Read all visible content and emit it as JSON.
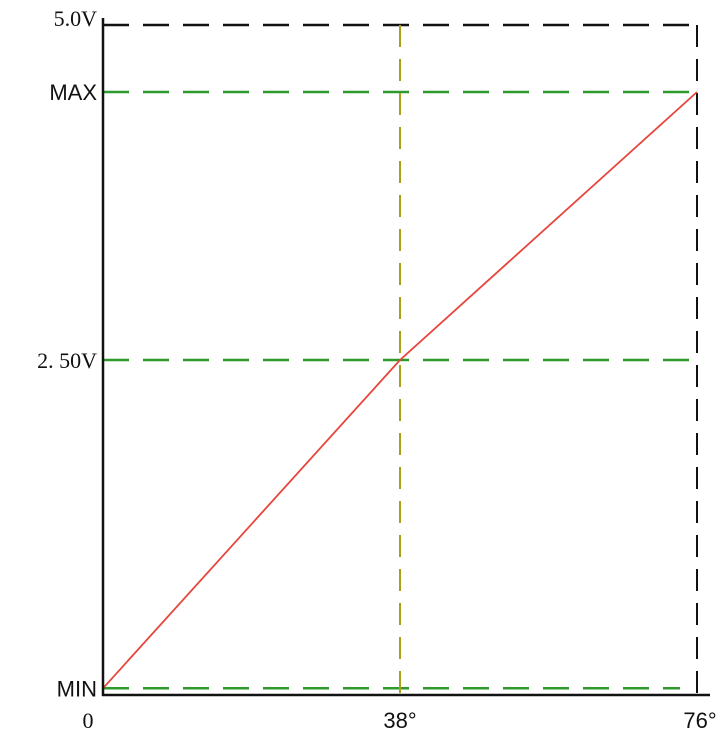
{
  "chart_data": {
    "type": "line",
    "title": "",
    "xlabel": "",
    "ylabel": "",
    "x_ticks": [
      {
        "value": 0,
        "label": "0"
      },
      {
        "value": 38,
        "label": "38°"
      },
      {
        "value": 76,
        "label": "76°"
      }
    ],
    "y_ticks": [
      {
        "value": 5.0,
        "label": "5.0V"
      },
      {
        "value": 4.5,
        "label": "MAX"
      },
      {
        "value": 2.5,
        "label": "2. 50V"
      },
      {
        "value": 0.05,
        "label": "MIN"
      }
    ],
    "xlim": [
      0,
      76
    ],
    "ylim": [
      0,
      5.0
    ],
    "series": [
      {
        "x": [
          0,
          38,
          76
        ],
        "y": [
          0.05,
          2.5,
          4.5
        ],
        "color": "#e8453c"
      }
    ],
    "reference_lines": {
      "horizontal": [
        {
          "y": 4.5,
          "color": "#2e9a2e"
        },
        {
          "y": 2.5,
          "color": "#2e9a2e"
        },
        {
          "y": 0.05,
          "color": "#2e9a2e"
        },
        {
          "y": 5.0,
          "color": "#111111"
        }
      ],
      "vertical": [
        {
          "x": 38,
          "color": "#a8a21a"
        },
        {
          "x": 76,
          "color": "#111111"
        }
      ]
    },
    "colors": {
      "axis": "#111111",
      "mid_label": "#2e9a2e"
    },
    "grid": false,
    "legend": "none"
  }
}
